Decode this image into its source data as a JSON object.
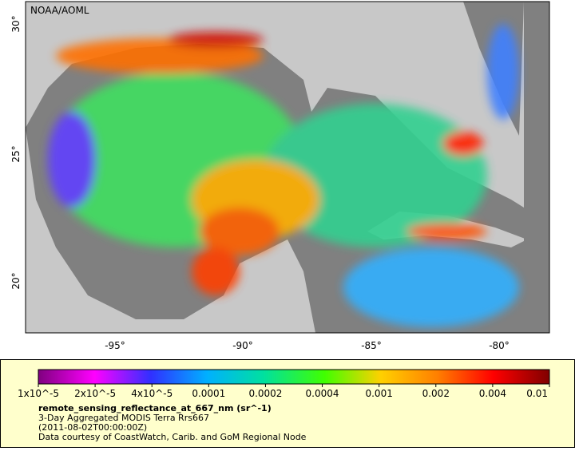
{
  "map": {
    "credit": "NOAA/AOML",
    "x_tick_labels": [
      "-95°",
      "-90°",
      "-85°",
      "-80°"
    ],
    "y_tick_labels": [
      "30°",
      "25°",
      "20°"
    ]
  },
  "colorbar": {
    "tick_labels": [
      "1x10^-5",
      "2x10^-5",
      "4x10^-5",
      "0.0001",
      "0.0002",
      "0.0004",
      "0.001",
      "0.002",
      "0.004",
      "0.01"
    ]
  },
  "legend": {
    "variable": "remote_sensing_reflectance_at_667_nm (sr^-1)",
    "dataset": "3-Day Aggregated MODIS Terra Rrs667",
    "time": "(2011-08-02T00:00:00Z)",
    "credit": "Data courtesy of CoastWatch, Carib. and GoM Regional Node"
  }
}
